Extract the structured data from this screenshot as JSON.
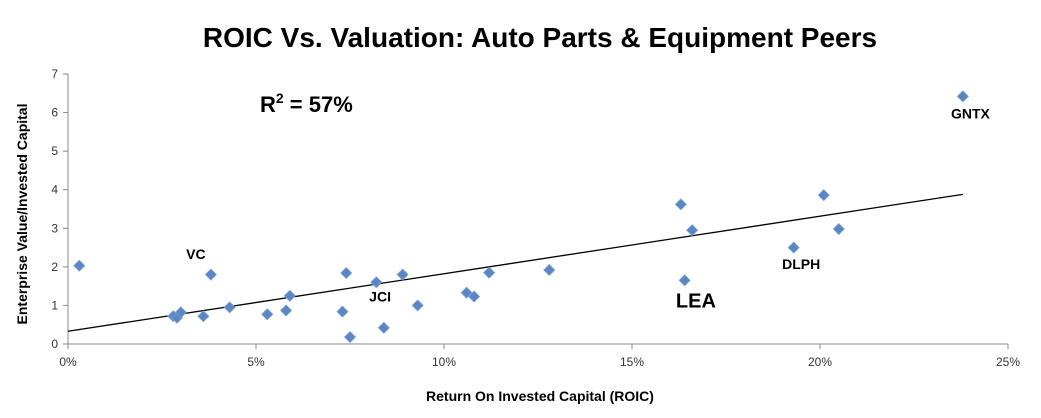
{
  "chart_data": {
    "type": "scatter",
    "title": "ROIC Vs. Valuation: Auto Parts & Equipment Peers",
    "xlabel": "Return On Invested Capital (ROIC)",
    "ylabel": "Enterprise Value/Invested Capital",
    "xlim": [
      0,
      25
    ],
    "ylim": [
      0,
      7
    ],
    "x_ticks": [
      "0%",
      "5%",
      "10%",
      "15%",
      "20%",
      "25%"
    ],
    "y_ticks": [
      "0",
      "1",
      "2",
      "3",
      "4",
      "5",
      "6",
      "7"
    ],
    "marker_color": "#5a86c4",
    "grid": false,
    "r_squared": {
      "base": "R",
      "sup": "2",
      "rest": " = 57%"
    },
    "trendline": {
      "x": [
        0,
        23.8
      ],
      "y": [
        0.33,
        3.88
      ]
    },
    "points": [
      {
        "x": 0.3,
        "y": 2.03
      },
      {
        "x": 2.8,
        "y": 0.72
      },
      {
        "x": 2.9,
        "y": 0.68
      },
      {
        "x": 3.0,
        "y": 0.82
      },
      {
        "x": 3.6,
        "y": 0.72
      },
      {
        "x": 3.8,
        "y": 1.8
      },
      {
        "x": 4.3,
        "y": 0.95
      },
      {
        "x": 5.3,
        "y": 0.77
      },
      {
        "x": 5.8,
        "y": 0.87
      },
      {
        "x": 5.9,
        "y": 1.25
      },
      {
        "x": 7.3,
        "y": 0.84
      },
      {
        "x": 7.4,
        "y": 1.84
      },
      {
        "x": 7.5,
        "y": 0.18
      },
      {
        "x": 8.2,
        "y": 1.6
      },
      {
        "x": 8.4,
        "y": 0.42
      },
      {
        "x": 8.9,
        "y": 1.8
      },
      {
        "x": 9.3,
        "y": 1.0
      },
      {
        "x": 10.6,
        "y": 1.33
      },
      {
        "x": 10.8,
        "y": 1.23
      },
      {
        "x": 11.2,
        "y": 1.85
      },
      {
        "x": 12.8,
        "y": 1.92
      },
      {
        "x": 16.3,
        "y": 3.62
      },
      {
        "x": 16.4,
        "y": 1.65
      },
      {
        "x": 16.6,
        "y": 2.95
      },
      {
        "x": 19.3,
        "y": 2.5
      },
      {
        "x": 20.1,
        "y": 3.86
      },
      {
        "x": 20.5,
        "y": 2.98
      },
      {
        "x": 23.8,
        "y": 6.42
      }
    ],
    "annotations": [
      {
        "text": "VC",
        "x": 3.4,
        "y": 2.2,
        "size": "small"
      },
      {
        "text": "JCI",
        "x": 8.3,
        "y": 1.1,
        "size": "small"
      },
      {
        "text": "LEA",
        "x": 16.7,
        "y": 0.95,
        "size": "large"
      },
      {
        "text": "DLPH",
        "x": 19.5,
        "y": 1.95,
        "size": "small"
      },
      {
        "text": "GNTX",
        "x": 24.0,
        "y": 5.85,
        "size": "small"
      }
    ]
  }
}
